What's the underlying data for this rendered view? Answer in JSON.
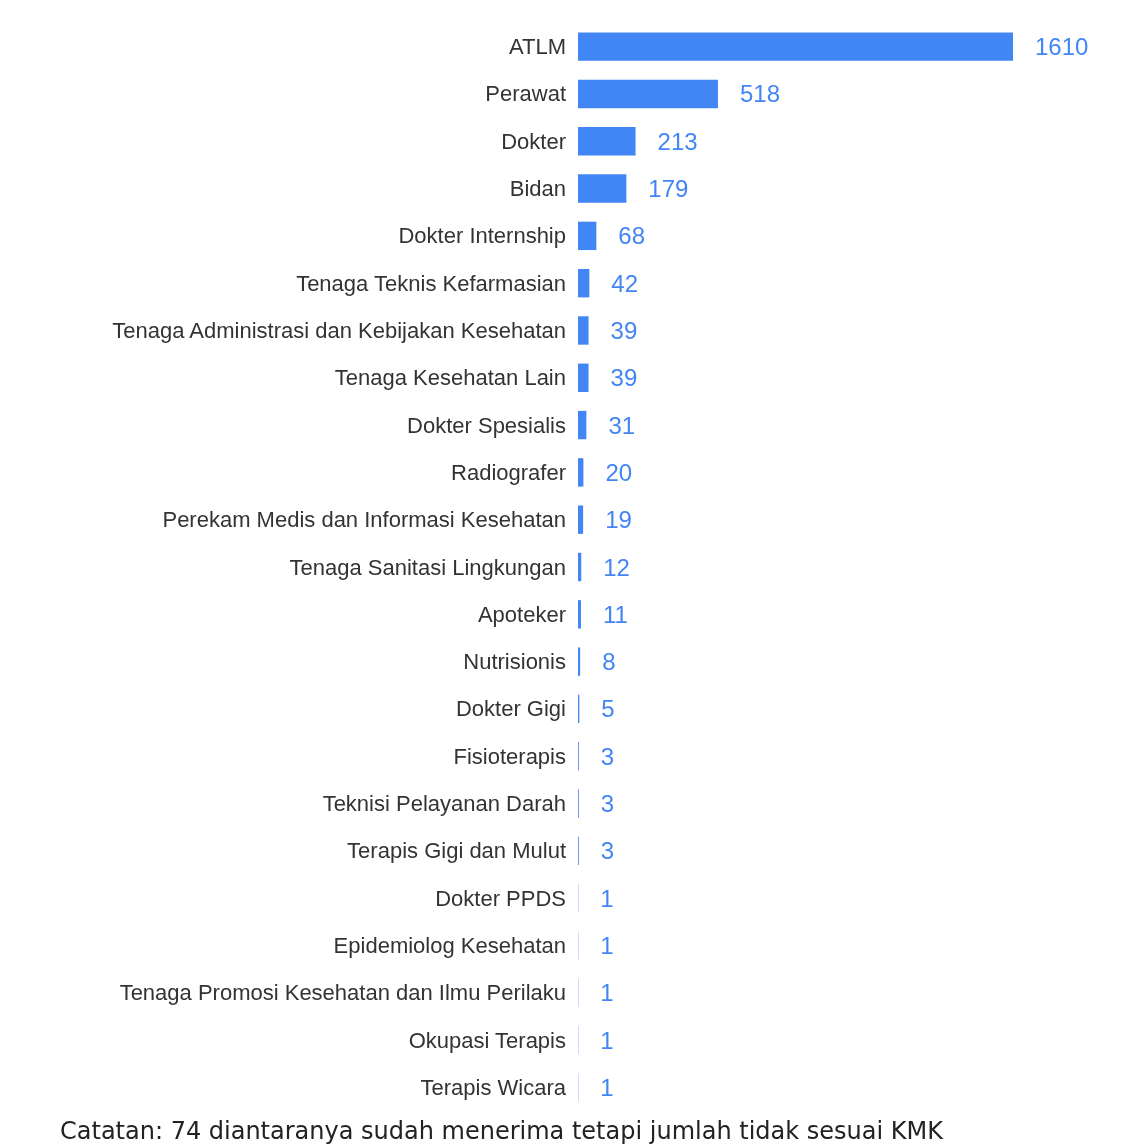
{
  "chart_data": {
    "type": "bar",
    "orientation": "horizontal",
    "categories": [
      "ATLM",
      "Perawat",
      "Dokter",
      "Bidan",
      "Dokter Internship",
      "Tenaga Teknis Kefarmasian",
      "Tenaga Administrasi dan Kebijakan Kesehatan",
      "Tenaga Kesehatan Lain",
      "Dokter Spesialis",
      "Radiografer",
      "Perekam Medis dan Informasi Kesehatan",
      "Tenaga Sanitasi Lingkungan",
      "Apoteker",
      "Nutrisionis",
      "Dokter Gigi",
      "Fisioterapis",
      "Teknisi Pelayanan Darah",
      "Terapis Gigi dan Mulut",
      "Dokter PPDS",
      "Epidemiolog Kesehatan",
      "Tenaga Promosi Kesehatan dan Ilmu Perilaku",
      "Okupasi Terapis",
      "Terapis Wicara"
    ],
    "values": [
      1610,
      518,
      213,
      179,
      68,
      42,
      39,
      39,
      31,
      20,
      19,
      12,
      11,
      8,
      5,
      3,
      3,
      3,
      1,
      1,
      1,
      1,
      1
    ],
    "color": "#4285f4",
    "data_labels": true,
    "annotations": [
      "Catatan: 74 diantaranya sudah menerima tetapi jumlah tidak sesuai KMK"
    ]
  }
}
